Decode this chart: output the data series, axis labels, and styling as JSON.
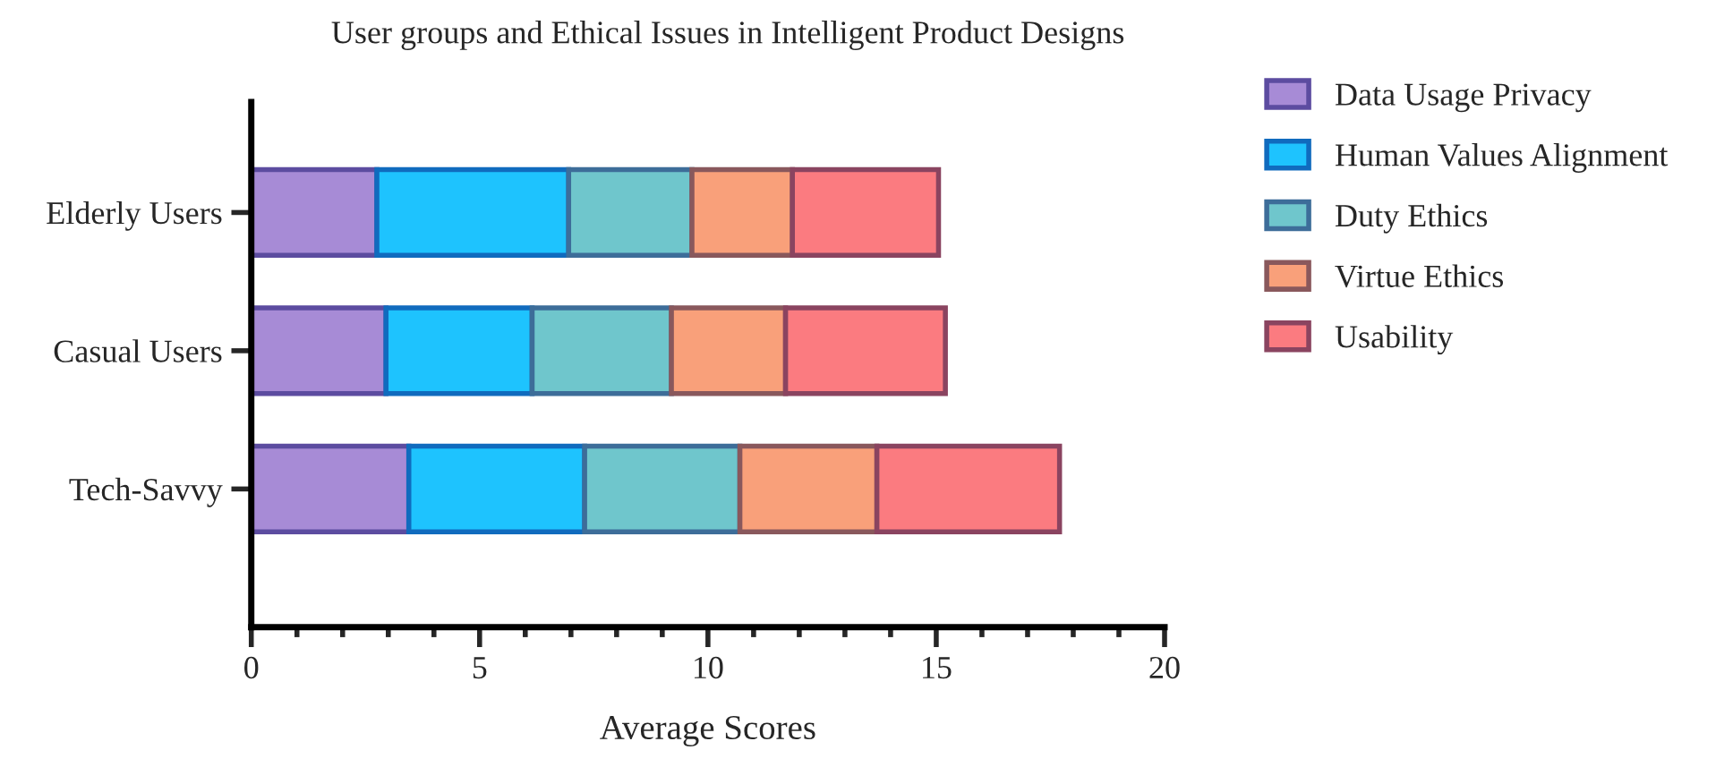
{
  "chart_data": {
    "type": "bar",
    "orientation": "horizontal",
    "stacked": true,
    "title": "User groups and Ethical Issues in Intelligent Product Designs",
    "xlabel": "Average Scores",
    "categories": [
      "Elderly Users",
      "Casual Users",
      "Tech-Savvy"
    ],
    "series": [
      {
        "name": "Data Usage Privacy",
        "color": "#a78bd6",
        "values": [
          2.75,
          2.95,
          3.45
        ]
      },
      {
        "name": "Human Values Alignment",
        "color": "#1ec3fe",
        "values": [
          4.2,
          3.2,
          3.85
        ]
      },
      {
        "name": "Duty Ethics",
        "color": "#6fc6cc",
        "values": [
          2.7,
          3.05,
          3.4
        ]
      },
      {
        "name": "Virtue Ethics",
        "color": "#f9a07a",
        "values": [
          2.2,
          2.5,
          3.0
        ]
      },
      {
        "name": "Usability",
        "color": "#fb7b80",
        "values": [
          3.2,
          3.5,
          4.0
        ]
      }
    ],
    "xlim": [
      0,
      20
    ],
    "xticks": [
      0,
      {
        "value": 1,
        "label": null
      },
      {
        "value": 2,
        "label": null
      },
      {
        "value": 3,
        "label": null
      },
      {
        "value": 4,
        "label": null
      },
      5,
      {
        "value": 6,
        "label": null
      },
      {
        "value": 7,
        "label": null
      },
      {
        "value": 8,
        "label": null
      },
      {
        "value": 9,
        "label": null
      },
      10,
      {
        "value": 11,
        "label": null
      },
      {
        "value": 12,
        "label": null
      },
      {
        "value": 13,
        "label": null
      },
      {
        "value": 14,
        "label": null
      },
      15,
      {
        "value": 16,
        "label": null
      },
      {
        "value": 17,
        "label": null
      },
      {
        "value": 18,
        "label": null
      },
      {
        "value": 19,
        "label": null
      },
      20
    ],
    "grid": false,
    "legend": "right"
  }
}
